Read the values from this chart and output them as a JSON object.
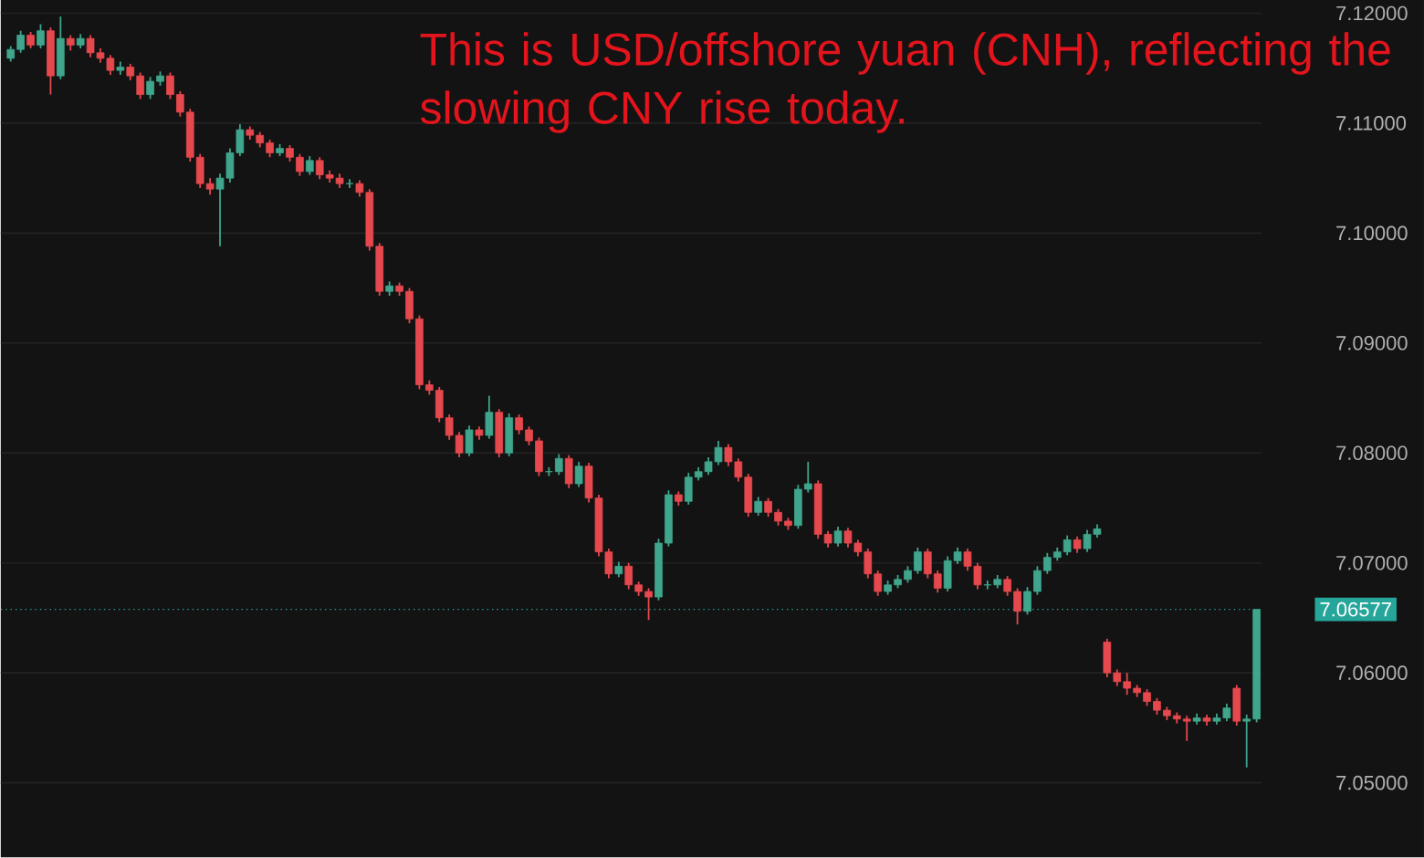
{
  "chart_data": {
    "type": "candlestick",
    "annotations": [
      "This is USD/offshore yuan (CNH), reflecting the slowing CNY rise today."
    ],
    "categories": [
      null,
      null,
      null,
      null,
      null,
      null,
      null,
      null,
      null,
      null,
      null,
      null,
      null,
      null,
      null,
      null,
      null,
      null,
      null,
      null,
      null,
      null,
      null,
      null,
      null,
      null,
      null,
      null,
      null,
      null,
      null,
      null,
      null,
      null,
      null,
      null,
      null,
      null,
      null,
      null,
      null,
      null,
      null,
      null,
      null,
      null,
      null,
      null,
      null,
      null,
      null,
      null,
      null,
      null,
      null,
      null,
      null,
      null,
      null,
      null,
      null,
      null,
      null,
      null,
      null,
      null,
      null,
      null,
      null,
      null,
      null,
      null,
      null,
      null,
      null,
      null,
      null,
      null,
      null,
      null,
      null,
      null,
      null,
      null,
      null,
      null,
      null,
      null,
      null,
      null,
      null,
      null,
      null,
      null,
      null,
      null,
      null,
      null,
      null,
      null,
      null,
      null,
      null,
      null,
      null,
      null,
      null,
      null,
      null,
      null,
      null,
      null,
      null,
      null,
      null,
      null,
      null,
      null,
      null,
      null,
      null,
      null,
      null,
      null,
      null,
      null
    ],
    "ohlc": [
      [
        7.1159,
        7.117,
        7.1156,
        7.1167
      ],
      [
        7.1167,
        7.1184,
        7.1164,
        7.118
      ],
      [
        7.118,
        7.1183,
        7.1168,
        7.1171
      ],
      [
        7.1171,
        7.119,
        7.1168,
        7.1184
      ],
      [
        7.1184,
        7.1187,
        7.1126,
        7.1143
      ],
      [
        7.1143,
        7.1197,
        7.114,
        7.1177
      ],
      [
        7.1177,
        7.118,
        7.1166,
        7.1171
      ],
      [
        7.1171,
        7.1181,
        7.1168,
        7.1177
      ],
      [
        7.1177,
        7.118,
        7.116,
        7.1164
      ],
      [
        7.1164,
        7.1168,
        7.1155,
        7.1159
      ],
      [
        7.1159,
        7.1162,
        7.1144,
        7.1148
      ],
      [
        7.1148,
        7.1156,
        7.1144,
        7.1151
      ],
      [
        7.1151,
        7.1154,
        7.1139,
        7.1143
      ],
      [
        7.1143,
        7.1146,
        7.1122,
        7.1126
      ],
      [
        7.1126,
        7.1142,
        7.1122,
        7.1138
      ],
      [
        7.1138,
        7.1147,
        7.1134,
        7.1143
      ],
      [
        7.1143,
        7.1146,
        7.1122,
        7.1126
      ],
      [
        7.1126,
        7.1129,
        7.1106,
        7.111
      ],
      [
        7.111,
        7.1113,
        7.1065,
        7.1069
      ],
      [
        7.1069,
        7.1072,
        7.1041,
        7.1045
      ],
      [
        7.1045,
        7.105,
        7.1035,
        7.104
      ],
      [
        7.104,
        7.1054,
        7.0988,
        7.105
      ],
      [
        7.105,
        7.1077,
        7.1046,
        7.1073
      ],
      [
        7.1073,
        7.1099,
        7.107,
        7.1094
      ],
      [
        7.1094,
        7.1097,
        7.1085,
        7.1089
      ],
      [
        7.1089,
        7.1092,
        7.1078,
        7.1082
      ],
      [
        7.1082,
        7.1085,
        7.1069,
        7.1073
      ],
      [
        7.1073,
        7.1081,
        7.107,
        7.1077
      ],
      [
        7.1077,
        7.108,
        7.1065,
        7.1069
      ],
      [
        7.1069,
        7.1072,
        7.1052,
        7.1056
      ],
      [
        7.1056,
        7.107,
        7.1053,
        7.1066
      ],
      [
        7.1066,
        7.1069,
        7.1049,
        7.1053
      ],
      [
        7.1053,
        7.1057,
        7.1046,
        7.105
      ],
      [
        7.105,
        7.1054,
        7.1041,
        7.1045
      ],
      [
        7.1045,
        7.1049,
        7.1041,
        7.1045
      ],
      [
        7.1045,
        7.1048,
        7.1033,
        7.1037
      ],
      [
        7.1037,
        7.104,
        7.0984,
        7.0988
      ],
      [
        7.0988,
        7.0991,
        7.0943,
        7.0947
      ],
      [
        7.0947,
        7.0956,
        7.0943,
        7.0952
      ],
      [
        7.0952,
        7.0955,
        7.0943,
        7.0947
      ],
      [
        7.0947,
        7.095,
        7.0918,
        7.0922
      ],
      [
        7.0922,
        7.0925,
        7.0858,
        7.0862
      ],
      [
        7.0862,
        7.0866,
        7.0853,
        7.0857
      ],
      [
        7.0857,
        7.086,
        7.0828,
        7.0832
      ],
      [
        7.0832,
        7.0835,
        7.0812,
        7.0816
      ],
      [
        7.0816,
        7.0819,
        7.0796,
        7.08
      ],
      [
        7.08,
        7.0825,
        7.0797,
        7.0821
      ],
      [
        7.0821,
        7.0824,
        7.0812,
        7.0816
      ],
      [
        7.0816,
        7.0852,
        7.0813,
        7.0837
      ],
      [
        7.0837,
        7.084,
        7.0796,
        7.08
      ],
      [
        7.08,
        7.0836,
        7.0797,
        7.0832
      ],
      [
        7.0832,
        7.0835,
        7.0817,
        7.0821
      ],
      [
        7.0821,
        7.0824,
        7.0807,
        7.0811
      ],
      [
        7.0811,
        7.0814,
        7.0779,
        7.0783
      ],
      [
        7.0783,
        7.0787,
        7.0779,
        7.0783
      ],
      [
        7.0783,
        7.0799,
        7.078,
        7.0795
      ],
      [
        7.0795,
        7.0798,
        7.0768,
        7.0772
      ],
      [
        7.0772,
        7.0792,
        7.0769,
        7.0788
      ],
      [
        7.0788,
        7.0791,
        7.0755,
        7.0759
      ],
      [
        7.0759,
        7.0762,
        7.0706,
        7.071
      ],
      [
        7.071,
        7.0713,
        7.0686,
        7.069
      ],
      [
        7.069,
        7.0701,
        7.0687,
        7.0697
      ],
      [
        7.0697,
        7.07,
        7.0676,
        7.068
      ],
      [
        7.068,
        7.0683,
        7.067,
        7.0674
      ],
      [
        7.0674,
        7.0677,
        7.0648,
        7.0669
      ],
      [
        7.0669,
        7.0722,
        7.0666,
        7.0718
      ],
      [
        7.0718,
        7.0766,
        7.0715,
        7.0762
      ],
      [
        7.0762,
        7.0765,
        7.0752,
        7.0756
      ],
      [
        7.0756,
        7.0782,
        7.0753,
        7.0778
      ],
      [
        7.0778,
        7.0787,
        7.0775,
        7.0783
      ],
      [
        7.0783,
        7.0796,
        7.078,
        7.0792
      ],
      [
        7.0792,
        7.0811,
        7.0789,
        7.0805
      ],
      [
        7.0805,
        7.0808,
        7.0788,
        7.0792
      ],
      [
        7.0792,
        7.0795,
        7.0774,
        7.0778
      ],
      [
        7.0778,
        7.0781,
        7.0742,
        7.0746
      ],
      [
        7.0746,
        7.076,
        7.0743,
        7.0756
      ],
      [
        7.0756,
        7.0759,
        7.0742,
        7.0746
      ],
      [
        7.0746,
        7.0749,
        7.0734,
        7.0738
      ],
      [
        7.0738,
        7.0741,
        7.073,
        7.0734
      ],
      [
        7.0734,
        7.0771,
        7.0731,
        7.0767
      ],
      [
        7.0767,
        7.0792,
        7.0764,
        7.0772
      ],
      [
        7.0772,
        7.0775,
        7.0722,
        7.0726
      ],
      [
        7.0726,
        7.0729,
        7.0714,
        7.0718
      ],
      [
        7.0718,
        7.0733,
        7.0715,
        7.0729
      ],
      [
        7.0729,
        7.0732,
        7.0714,
        7.0718
      ],
      [
        7.0718,
        7.0721,
        7.0706,
        7.071
      ],
      [
        7.071,
        7.0713,
        7.0686,
        7.069
      ],
      [
        7.069,
        7.0693,
        7.067,
        7.0674
      ],
      [
        7.0674,
        7.0684,
        7.0671,
        7.068
      ],
      [
        7.068,
        7.0689,
        7.0677,
        7.0685
      ],
      [
        7.0685,
        7.0697,
        7.0682,
        7.0693
      ],
      [
        7.0693,
        7.0714,
        7.069,
        7.071
      ],
      [
        7.071,
        7.0713,
        7.0686,
        7.069
      ],
      [
        7.069,
        7.0693,
        7.0673,
        7.0677
      ],
      [
        7.0677,
        7.0706,
        7.0674,
        7.0702
      ],
      [
        7.0702,
        7.0714,
        7.0699,
        7.071
      ],
      [
        7.071,
        7.0713,
        7.0693,
        7.0697
      ],
      [
        7.0697,
        7.07,
        7.0676,
        7.068
      ],
      [
        7.068,
        7.0684,
        7.0676,
        7.068
      ],
      [
        7.068,
        7.0689,
        7.0677,
        7.0685
      ],
      [
        7.0685,
        7.0688,
        7.067,
        7.0674
      ],
      [
        7.0674,
        7.0677,
        7.0644,
        7.0656
      ],
      [
        7.0656,
        7.0678,
        7.0653,
        7.0674
      ],
      [
        7.0674,
        7.0697,
        7.0671,
        7.0693
      ],
      [
        7.0693,
        7.0709,
        7.069,
        7.0705
      ],
      [
        7.0705,
        7.0714,
        7.0702,
        7.071
      ],
      [
        7.071,
        7.0725,
        7.0707,
        7.0721
      ],
      [
        7.0721,
        7.0724,
        7.0709,
        7.0713
      ],
      [
        7.0713,
        7.073,
        7.071,
        7.0726
      ],
      [
        7.0726,
        7.0735,
        7.0723,
        7.0731
      ],
      [
        7.0628,
        7.0631,
        7.0596,
        7.06
      ],
      [
        7.06,
        7.0603,
        7.0588,
        7.0592
      ],
      [
        7.0592,
        7.06,
        7.058,
        7.0586
      ],
      [
        7.0586,
        7.0589,
        7.0578,
        7.0582
      ],
      [
        7.0582,
        7.0585,
        7.057,
        7.0574
      ],
      [
        7.0574,
        7.0577,
        7.0562,
        7.0566
      ],
      [
        7.0566,
        7.0569,
        7.0557,
        7.0561
      ],
      [
        7.0561,
        7.0564,
        7.0554,
        7.0558
      ],
      [
        7.0558,
        7.0561,
        7.0538,
        7.0556
      ],
      [
        7.0556,
        7.0563,
        7.0553,
        7.0559
      ],
      [
        7.0559,
        7.0562,
        7.0552,
        7.0556
      ],
      [
        7.0556,
        7.0563,
        7.0553,
        7.0559
      ],
      [
        7.0559,
        7.0572,
        7.0556,
        7.0568
      ],
      [
        7.0586,
        7.0589,
        7.0552,
        7.0556
      ],
      [
        7.0556,
        7.0562,
        7.0514,
        7.0558
      ],
      [
        7.0558,
        7.06577,
        7.0555,
        7.06577
      ]
    ],
    "ylim": [
      7.0432,
      7.1212
    ],
    "yticks": [
      {
        "value": 7.05,
        "label": "7.05000"
      },
      {
        "value": 7.06,
        "label": "7.06000"
      },
      {
        "value": 7.07,
        "label": "7.07000"
      },
      {
        "value": 7.08,
        "label": "7.08000"
      },
      {
        "value": 7.09,
        "label": "7.09000"
      },
      {
        "value": 7.1,
        "label": "7.10000"
      },
      {
        "value": 7.11,
        "label": "7.11000"
      },
      {
        "value": 7.12,
        "label": "7.12000"
      }
    ],
    "ref_lines": [
      {
        "axis": "y",
        "value": 7.06577,
        "label": "7.06577",
        "color": "#26a69a",
        "line_style": "dotted"
      }
    ],
    "grid": "y"
  }
}
